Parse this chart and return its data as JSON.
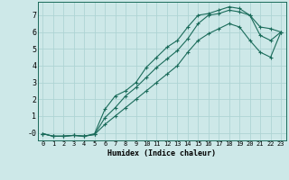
{
  "title": "",
  "xlabel": "Humidex (Indice chaleur)",
  "ylabel": "",
  "bg_color": "#cde8e8",
  "grid_color": "#aed4d4",
  "line_color": "#1a6b5a",
  "xlim": [
    -0.5,
    23.5
  ],
  "ylim": [
    -0.45,
    7.8
  ],
  "xticks": [
    0,
    1,
    2,
    3,
    4,
    5,
    6,
    7,
    8,
    9,
    10,
    11,
    12,
    13,
    14,
    15,
    16,
    17,
    18,
    19,
    20,
    21,
    22,
    23
  ],
  "yticks": [
    0,
    1,
    2,
    3,
    4,
    5,
    6,
    7
  ],
  "ytick_labels": [
    "-0",
    "1",
    "2",
    "3",
    "4",
    "5",
    "6",
    "7"
  ],
  "line1_x": [
    0,
    1,
    2,
    3,
    4,
    5,
    6,
    7,
    8,
    9,
    10,
    11,
    12,
    13,
    14,
    15,
    16,
    17,
    18,
    19,
    20,
    21,
    22,
    23
  ],
  "line1_y": [
    -0.05,
    -0.2,
    -0.2,
    -0.15,
    -0.2,
    -0.05,
    1.4,
    2.2,
    2.5,
    3.0,
    3.9,
    4.5,
    5.1,
    5.5,
    6.3,
    7.0,
    7.1,
    7.3,
    7.5,
    7.4,
    7.0,
    6.3,
    6.2,
    6.0
  ],
  "line2_x": [
    0,
    1,
    2,
    3,
    4,
    5,
    6,
    7,
    8,
    9,
    10,
    11,
    12,
    13,
    14,
    15,
    16,
    17,
    18,
    19,
    20,
    21,
    22,
    23
  ],
  "line2_y": [
    -0.05,
    -0.2,
    -0.2,
    -0.15,
    -0.2,
    -0.1,
    0.9,
    1.5,
    2.2,
    2.7,
    3.3,
    3.9,
    4.4,
    4.9,
    5.6,
    6.5,
    7.0,
    7.1,
    7.3,
    7.2,
    7.0,
    5.8,
    5.5,
    6.0
  ],
  "line3_x": [
    0,
    1,
    2,
    3,
    4,
    5,
    6,
    7,
    8,
    9,
    10,
    11,
    12,
    13,
    14,
    15,
    16,
    17,
    18,
    19,
    20,
    21,
    22,
    23
  ],
  "line3_y": [
    -0.05,
    -0.2,
    -0.2,
    -0.15,
    -0.2,
    -0.1,
    0.5,
    1.0,
    1.5,
    2.0,
    2.5,
    3.0,
    3.5,
    4.0,
    4.8,
    5.5,
    5.9,
    6.2,
    6.5,
    6.3,
    5.5,
    4.8,
    4.5,
    6.0
  ],
  "xlabel_fontsize": 6.0,
  "ytick_fontsize": 6.0,
  "xtick_fontsize": 5.0
}
